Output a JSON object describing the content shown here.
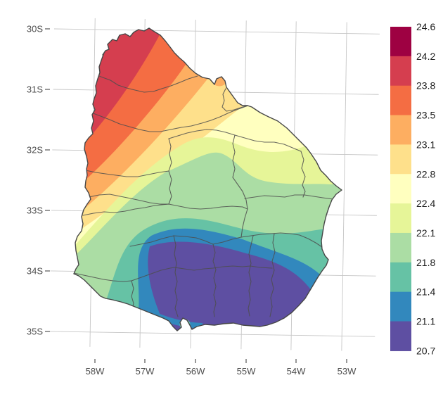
{
  "figure": {
    "type": "filled-contour choropleth map",
    "region": "Uruguay with internal department boundaries",
    "background": "#ffffff"
  },
  "axes": {
    "y_ticks": [
      "30S",
      "31S",
      "32S",
      "33S",
      "34S",
      "35S"
    ],
    "x_ticks": [
      "58W",
      "57W",
      "56W",
      "55W",
      "54W",
      "53W"
    ],
    "label_color": "#4d4d4d",
    "gridline_color": "#c6c6c6"
  },
  "legend": {
    "labels": [
      "24.6",
      "24.2",
      "23.8",
      "23.5",
      "23.1",
      "22.8",
      "22.4",
      "22.1",
      "21.8",
      "21.4",
      "21.1",
      "20.7"
    ],
    "colors": [
      "#9e0142",
      "#d53e4f",
      "#f46d43",
      "#fdae61",
      "#fee08b",
      "#ffffbf",
      "#e6f598",
      "#abdda4",
      "#66c2a5",
      "#3288bd",
      "#5e4fa2"
    ]
  },
  "chart_data": {
    "type": "heatmap",
    "subtype": "filled contour map over country outline",
    "title": "",
    "xlabel": "",
    "ylabel": "",
    "x_ticks": [
      "58W",
      "57W",
      "56W",
      "55W",
      "54W",
      "53W"
    ],
    "y_ticks": [
      "30S",
      "31S",
      "32S",
      "33S",
      "34S",
      "35S"
    ],
    "value_range": [
      20.7,
      24.6
    ],
    "legend_breaks": [
      24.6,
      24.2,
      23.8,
      23.5,
      23.1,
      22.8,
      22.4,
      22.1,
      21.8,
      21.4,
      21.1,
      20.7
    ],
    "palette_top_to_bottom": [
      "#9e0142",
      "#d53e4f",
      "#f46d43",
      "#fdae61",
      "#fee08b",
      "#ffffbf",
      "#e6f598",
      "#abdda4",
      "#66c2a5",
      "#3288bd",
      "#5e4fa2"
    ],
    "palette_name": "Spectral (11-class)",
    "grid": true,
    "legend_position": "right vertical colorbar",
    "pattern": "highest band shown on map 23.8-24.2 in the northwest corner; values decrease toward the south/southeast; lowest band 20.7-21.1 (purple) covers the south-central interior; small warmer spot at the Montevideo coastal peninsula and near the north border (Rivera)"
  }
}
